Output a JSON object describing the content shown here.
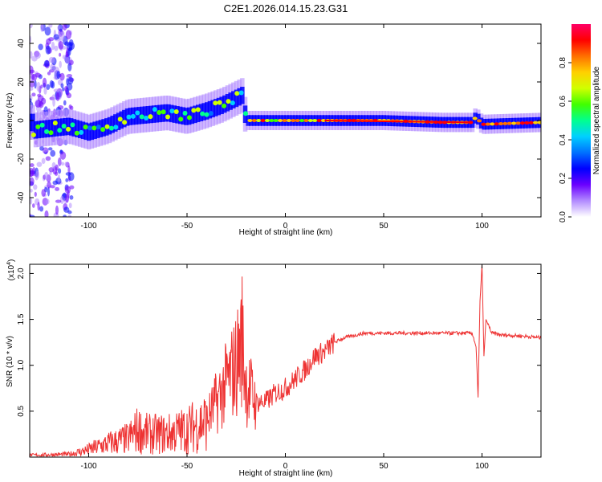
{
  "title": "C2E1.2026.014.15.23.G31",
  "colorbar_colors": [
    "#ffffff",
    "#b38cff",
    "#6a00ff",
    "#0000ff",
    "#0070ff",
    "#00d0ff",
    "#00ff90",
    "#40ff00",
    "#d0ff00",
    "#ffd000",
    "#ff7000",
    "#ff0000",
    "#ff0066"
  ],
  "line_color": "#ee3333",
  "chart_data": [
    {
      "type": "heatmap",
      "title": "",
      "xlabel": "Height of straight line (km)",
      "ylabel": "Frequency (Hz)",
      "xlim": [
        -130,
        130
      ],
      "ylim": [
        -50,
        50
      ],
      "x_ticks": [
        -100,
        -50,
        0,
        50,
        100
      ],
      "y_ticks": [
        -40,
        -20,
        0,
        20,
        40
      ],
      "colorbar": {
        "label": "Normalized spectral amplitude",
        "range": [
          0,
          1
        ],
        "ticks": [
          "0.0",
          "0.2",
          "0.4",
          "0.6",
          "0.8"
        ]
      },
      "ridge": [
        {
          "x": -128,
          "y": -5
        },
        {
          "x": -110,
          "y": -3
        },
        {
          "x": -100,
          "y": -6
        },
        {
          "x": -90,
          "y": -3
        },
        {
          "x": -80,
          "y": 2
        },
        {
          "x": -70,
          "y": 3
        },
        {
          "x": -60,
          "y": 4
        },
        {
          "x": -50,
          "y": 2
        },
        {
          "x": -40,
          "y": 5
        },
        {
          "x": -32,
          "y": 8
        },
        {
          "x": -28,
          "y": 10
        },
        {
          "x": -22,
          "y": 13
        },
        {
          "x": -20,
          "y": 0
        },
        {
          "x": -10,
          "y": 0
        },
        {
          "x": 0,
          "y": 0
        },
        {
          "x": 20,
          "y": 0
        },
        {
          "x": 50,
          "y": 0
        },
        {
          "x": 80,
          "y": -1
        },
        {
          "x": 95,
          "y": -1
        },
        {
          "x": 97,
          "y": 2
        },
        {
          "x": 100,
          "y": -2
        },
        {
          "x": 130,
          "y": -1
        }
      ]
    },
    {
      "type": "line",
      "title": "",
      "xlabel": "Height of straight line (km)",
      "ylabel": "SNR (10 * v/v)",
      "y_multiplier": "(x10",
      "y_multiplier_exp": "4",
      "y_multiplier_close": ")",
      "xlim": [
        -130,
        130
      ],
      "ylim": [
        0,
        2.1
      ],
      "x_ticks": [
        -100,
        -50,
        0,
        50,
        100
      ],
      "y_ticks": [
        0.5,
        1.0,
        1.5,
        2.0
      ],
      "y_tick_labels": [
        "0.5",
        "1.0",
        "1.5",
        "2.0"
      ],
      "x": [
        -130,
        -110,
        -100,
        -90,
        -80,
        -75,
        -70,
        -60,
        -50,
        -40,
        -35,
        -30,
        -25,
        -22,
        -20,
        -15,
        -10,
        -5,
        0,
        5,
        10,
        15,
        20,
        25,
        30,
        40,
        50,
        60,
        70,
        80,
        90,
        95,
        97,
        98,
        99,
        100,
        101,
        102,
        105,
        110,
        120,
        130
      ],
      "y": [
        0.02,
        0.03,
        0.08,
        0.15,
        0.2,
        0.3,
        0.25,
        0.25,
        0.3,
        0.4,
        0.6,
        0.8,
        1.0,
        1.3,
        0.8,
        0.6,
        0.6,
        0.7,
        0.75,
        0.85,
        0.95,
        1.1,
        1.15,
        1.25,
        1.3,
        1.35,
        1.35,
        1.35,
        1.35,
        1.35,
        1.35,
        1.35,
        1.2,
        0.65,
        1.7,
        2.1,
        1.1,
        1.5,
        1.35,
        1.33,
        1.32,
        1.3
      ]
    }
  ]
}
